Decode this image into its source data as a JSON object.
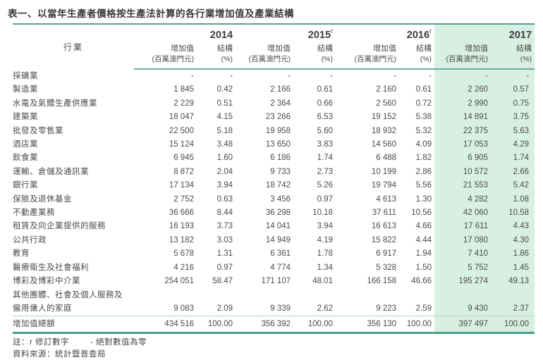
{
  "title": "表一、以當年生產者價格按生產法計算的各行業增加值及產業結構",
  "table": {
    "industry_header": "行業",
    "value_label": "增加值",
    "value_unit": "(百萬澳門元)",
    "share_label": "結構",
    "share_unit": "(%)",
    "years": [
      {
        "label": "2014",
        "sup": ""
      },
      {
        "label": "2015",
        "sup": "r"
      },
      {
        "label": "2016",
        "sup": "r"
      },
      {
        "label": "2017",
        "sup": ""
      }
    ],
    "rows": [
      {
        "industry": "採礦業",
        "values": [
          "-",
          "-",
          "-",
          "-",
          "-",
          "-",
          "-",
          "-"
        ]
      },
      {
        "industry": "製造業",
        "values": [
          "1 845",
          "0.42",
          "2 166",
          "0.61",
          "2 160",
          "0.61",
          "2 260",
          "0.57"
        ]
      },
      {
        "industry": "水電及氣體生產供應業",
        "values": [
          "2 229",
          "0.51",
          "2 364",
          "0.66",
          "2 560",
          "0.72",
          "2 990",
          "0.75"
        ]
      },
      {
        "industry": "建築業",
        "values": [
          "18 047",
          "4.15",
          "23 266",
          "6.53",
          "19 152",
          "5.38",
          "14 891",
          "3.75"
        ]
      },
      {
        "industry": "批發及零售業",
        "values": [
          "22 500",
          "5.18",
          "19 958",
          "5.60",
          "18 932",
          "5.32",
          "22 375",
          "5.63"
        ]
      },
      {
        "industry": "酒店業",
        "values": [
          "15 124",
          "3.48",
          "13 650",
          "3.83",
          "14 560",
          "4.09",
          "17 053",
          "4.29"
        ]
      },
      {
        "industry": "飲食業",
        "values": [
          "6 945",
          "1.60",
          "6 186",
          "1.74",
          "6 488",
          "1.82",
          "6 905",
          "1.74"
        ]
      },
      {
        "industry": "運輸、倉儲及通訊業",
        "values": [
          "8 872",
          "2.04",
          "9 733",
          "2.73",
          "10 199",
          "2.86",
          "10 572",
          "2.66"
        ]
      },
      {
        "industry": "銀行業",
        "values": [
          "17 134",
          "3.94",
          "18 742",
          "5.26",
          "19 794",
          "5.56",
          "21 553",
          "5.42"
        ]
      },
      {
        "industry": "保險及退休基金",
        "values": [
          "2 752",
          "0.63",
          "3 456",
          "0.97",
          "4 613",
          "1.30",
          "4 282",
          "1.08"
        ]
      },
      {
        "industry": "不動產業務",
        "values": [
          "36 666",
          "8.44",
          "36 298",
          "10.18",
          "37 611",
          "10.56",
          "42 060",
          "10.58"
        ]
      },
      {
        "industry": "租賃及向企業提供的服務",
        "values": [
          "16 193",
          "3.73",
          "14 041",
          "3.94",
          "16 613",
          "4.66",
          "17 611",
          "4.43"
        ]
      },
      {
        "industry": "公共行政",
        "values": [
          "13 182",
          "3.03",
          "14 949",
          "4.19",
          "15 822",
          "4.44",
          "17 080",
          "4.30"
        ]
      },
      {
        "industry": "教育",
        "values": [
          "5 678",
          "1.31",
          "6 361",
          "1.78",
          "6 917",
          "1.94",
          "7 410",
          "1.86"
        ]
      },
      {
        "industry": "醫療衛生及社會福利",
        "values": [
          "4 216",
          "0.97",
          "4 774",
          "1.34",
          "5 328",
          "1.50",
          "5 752",
          "1.45"
        ]
      },
      {
        "industry": "博彩及博彩中介業",
        "values": [
          "254 051",
          "58.47",
          "171 107",
          "48.01",
          "166 158",
          "46.66",
          "195 274",
          "49.13"
        ]
      },
      {
        "industry": "其他團體、社會及個人服務及\n僱用傭人的家庭",
        "values": [
          "9 083",
          "2.09",
          "9 339",
          "2.62",
          "9 223",
          "2.59",
          "9 430",
          "2.37"
        ]
      }
    ],
    "total": {
      "industry": "增加值總額",
      "values": [
        "434 516",
        "100.00",
        "356 392",
        "100.00",
        "356 130",
        "100.00",
        "397 497",
        "100.00"
      ]
    }
  },
  "notes": {
    "note1": "註：r 修訂數字",
    "note2": "- 絕對數值為零",
    "source": "資料來源：統計暨普查局"
  },
  "colors": {
    "accent_teal": "#55a191",
    "highlight_green": "#d8efe3",
    "text": "#474747"
  }
}
